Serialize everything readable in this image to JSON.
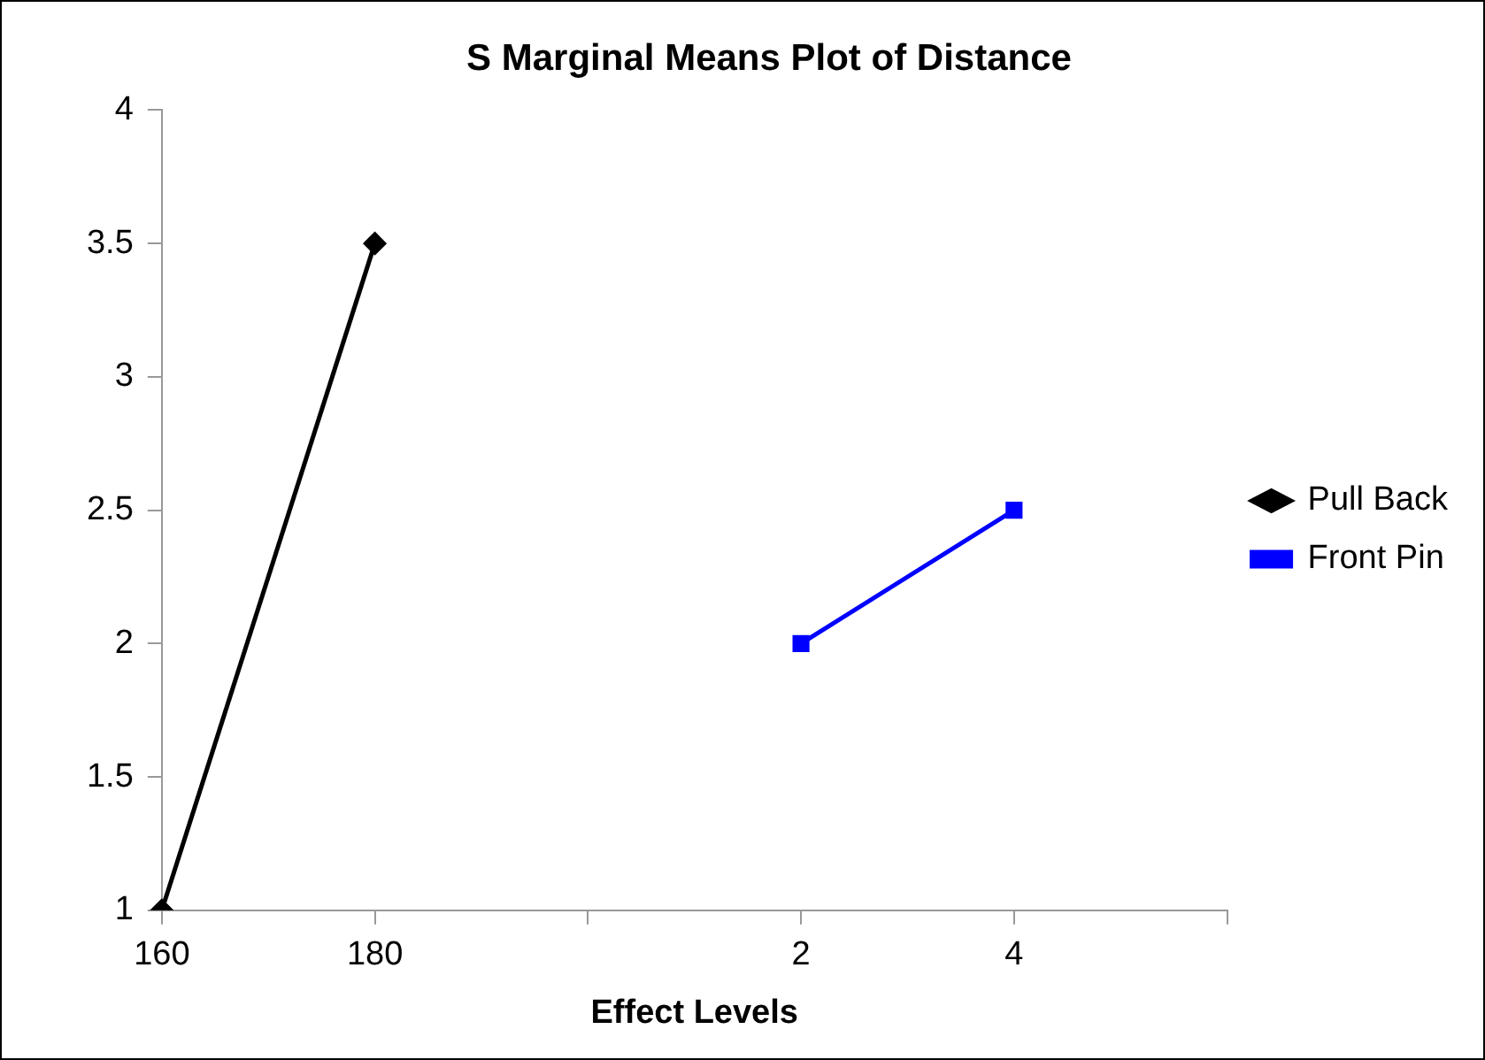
{
  "chart_data": {
    "type": "line",
    "title": "S Marginal Means Plot of Distance",
    "xlabel": "Effect Levels",
    "categories": [
      "160",
      "180",
      null,
      "2",
      "4",
      null
    ],
    "series": [
      {
        "name": "Pull Back",
        "color": "#000000",
        "marker": "diamond",
        "values": [
          1,
          3.5,
          null,
          null,
          null,
          null
        ]
      },
      {
        "name": "Front Pin",
        "color": "#0000ff",
        "marker": "square",
        "values": [
          null,
          null,
          null,
          2,
          2.5,
          null
        ]
      }
    ],
    "ylim": [
      1,
      4
    ],
    "yticks": [
      1,
      1.5,
      2,
      2.5,
      3,
      3.5,
      4
    ],
    "grid": false,
    "legend": "right",
    "line_style": "solid"
  }
}
